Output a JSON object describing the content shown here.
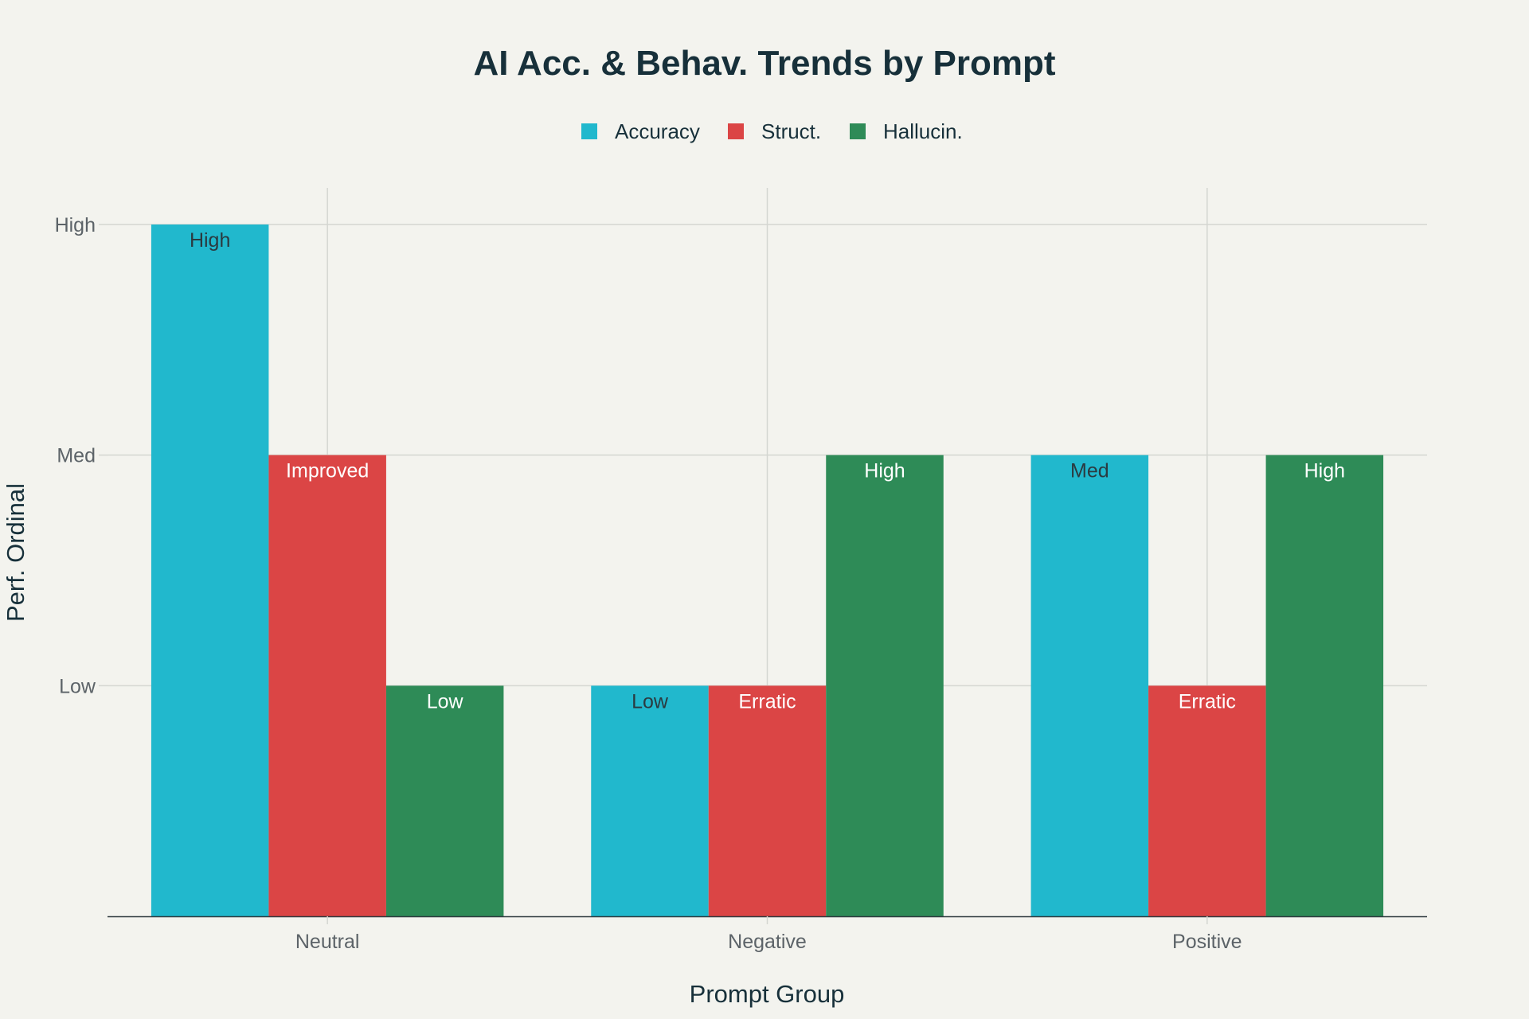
{
  "chart_data": {
    "type": "bar",
    "title": "AI Acc. & Behav. Trends by Prompt",
    "xlabel": "Prompt Group",
    "ylabel": "Perf. Ordinal",
    "categories": [
      "Neutral",
      "Negative",
      "Positive"
    ],
    "yticks": [
      "Low",
      "Med",
      "High"
    ],
    "ylim": [
      0,
      3
    ],
    "grid": true,
    "legend_position": "top-center",
    "series": [
      {
        "name": "Accuracy",
        "color": "#21b8cd",
        "label_color": "#2b3a40",
        "values": [
          3,
          1,
          2
        ],
        "labels": [
          "High",
          "Low",
          "Med"
        ]
      },
      {
        "name": "Struct.",
        "color": "#db4545",
        "label_color": "#ffffff",
        "values": [
          2,
          1,
          1
        ],
        "labels": [
          "Improved",
          "Erratic",
          "Erratic"
        ]
      },
      {
        "name": "Hallucin.",
        "color": "#2e8b57",
        "label_color": "#ffffff",
        "values": [
          1,
          2,
          2
        ],
        "labels": [
          "Low",
          "High",
          "High"
        ]
      }
    ]
  }
}
